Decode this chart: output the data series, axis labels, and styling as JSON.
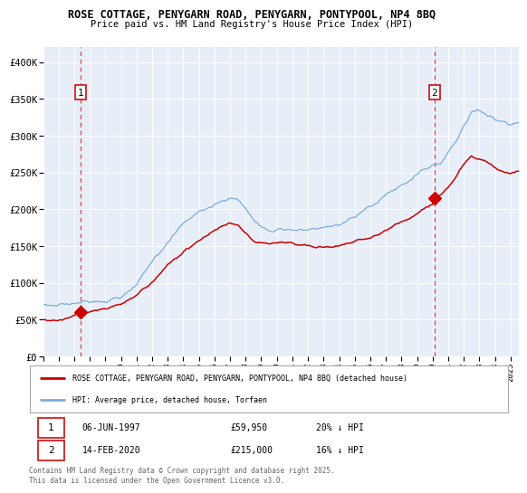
{
  "title1": "ROSE COTTAGE, PENYGARN ROAD, PENYGARN, PONTYPOOL, NP4 8BQ",
  "title2": "Price paid vs. HM Land Registry's House Price Index (HPI)",
  "ylabel_ticks": [
    "£0",
    "£50K",
    "£100K",
    "£150K",
    "£200K",
    "£250K",
    "£300K",
    "£350K",
    "£400K"
  ],
  "ytick_values": [
    0,
    50000,
    100000,
    150000,
    200000,
    250000,
    300000,
    350000,
    400000
  ],
  "ylim": [
    0,
    420000
  ],
  "xlim_start": 1995.0,
  "xlim_end": 2025.5,
  "sale1_x": 1997.43,
  "sale1_price": 59950,
  "sale2_x": 2020.12,
  "sale2_price": 215000,
  "red_line_color": "#cc0000",
  "blue_line_color": "#7aaddc",
  "dashed_line_color": "#dd4444",
  "plot_bg": "#e8eef8",
  "legend_label_red": "ROSE COTTAGE, PENYGARN ROAD, PENYGARN, PONTYPOOL, NP4 8BQ (detached house)",
  "legend_label_blue": "HPI: Average price, detached house, Torfaen",
  "footer": "Contains HM Land Registry data © Crown copyright and database right 2025.\nThis data is licensed under the Open Government Licence v3.0.",
  "xtick_years": [
    1995,
    1996,
    1997,
    1998,
    1999,
    2000,
    2001,
    2002,
    2003,
    2004,
    2005,
    2006,
    2007,
    2008,
    2009,
    2010,
    2011,
    2012,
    2013,
    2014,
    2015,
    2016,
    2017,
    2018,
    2019,
    2020,
    2021,
    2022,
    2023,
    2024,
    2025
  ]
}
